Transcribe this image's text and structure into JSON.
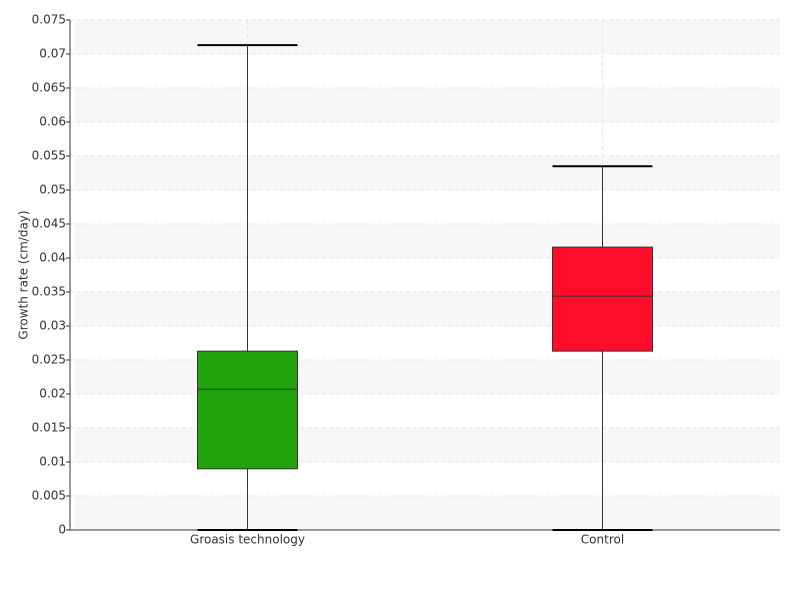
{
  "chart_data": {
    "type": "box",
    "ylabel": "Growth rate (cm/day)",
    "categories": [
      "Groasis technology",
      "Control"
    ],
    "colors": [
      "#22a30c",
      "#ff0d2a"
    ],
    "boxes": [
      {
        "min": 0,
        "q1": 0.009,
        "median": 0.0207,
        "q3": 0.0263,
        "max": 0.0713
      },
      {
        "min": 0,
        "q1": 0.0263,
        "median": 0.0344,
        "q3": 0.0416,
        "max": 0.0535
      }
    ],
    "ylim": [
      0,
      0.075
    ],
    "yticks": [
      0,
      0.005,
      0.01,
      0.015,
      0.02,
      0.025,
      0.03,
      0.035,
      0.04,
      0.045,
      0.05,
      0.055,
      0.06,
      0.065,
      0.07,
      0.075
    ],
    "grid": true
  }
}
